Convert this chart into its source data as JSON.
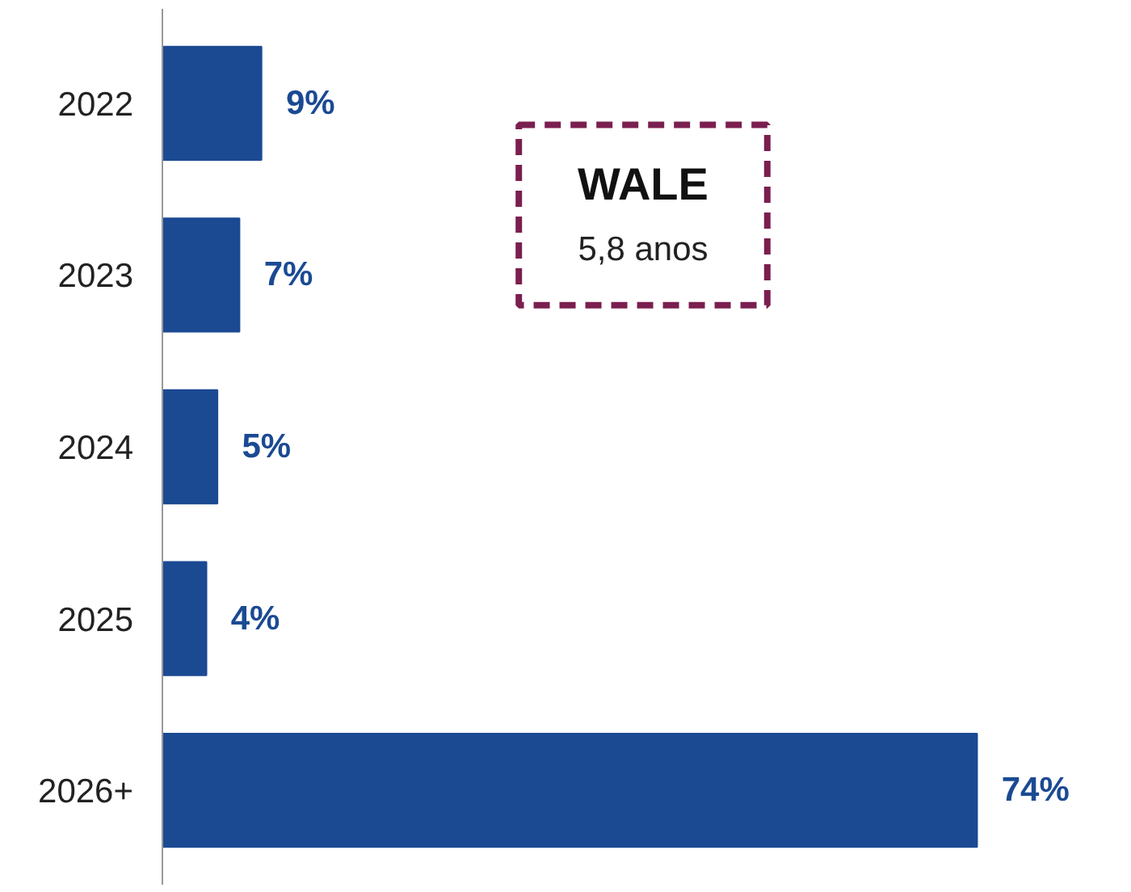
{
  "chart_data": {
    "type": "bar",
    "orientation": "horizontal",
    "categories": [
      "2022",
      "2023",
      "2024",
      "2025",
      "2026+"
    ],
    "values": [
      9,
      7,
      5,
      4,
      74
    ],
    "value_labels": [
      "9%",
      "7%",
      "5%",
      "4%",
      "74%"
    ],
    "color": "#1b4a93",
    "annotations": [
      "WALE",
      "5,8 anos"
    ],
    "grid": false
  }
}
